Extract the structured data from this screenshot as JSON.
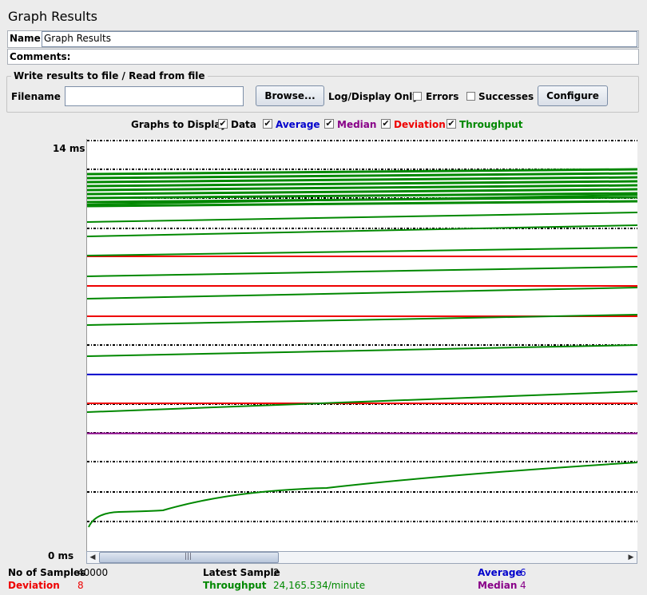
{
  "window": {
    "title": "Graph Results"
  },
  "name_field": {
    "label": "Name:",
    "value": "Graph Results"
  },
  "comments_field": {
    "label": "Comments:",
    "value": ""
  },
  "file_group": {
    "legend": "Write results to file / Read from file",
    "filename_label": "Filename",
    "filename_value": "",
    "browse_label": "Browse...",
    "log_display_label": "Log/Display Only:",
    "errors_label": "Errors",
    "errors_checked": false,
    "successes_label": "Successes",
    "successes_checked": false,
    "configure_label": "Configure"
  },
  "graphs_to_display": {
    "label": "Graphs to Display",
    "options": [
      {
        "label": "Data",
        "checked": true,
        "color": "#000000"
      },
      {
        "label": "Average",
        "checked": true,
        "color": "#0000cc"
      },
      {
        "label": "Median",
        "checked": true,
        "color": "#880088"
      },
      {
        "label": "Deviation",
        "checked": true,
        "color": "#ee0000"
      },
      {
        "label": "Throughput",
        "checked": true,
        "color": "#008800"
      }
    ]
  },
  "chart": {
    "y_max_label": "14 ms",
    "y_min_label": "0 ms",
    "y_range_ms": [
      0,
      14
    ],
    "average_ms": 6,
    "median_ms": 4,
    "check_mark": "✔"
  },
  "stats": {
    "samples_label": "No of Samples",
    "samples_value": "40000",
    "latest_label": "Latest Sample",
    "latest_value": "2",
    "average_label": "Average",
    "average_value": "6",
    "deviation_label": "Deviation",
    "deviation_value": "8",
    "throughput_label": "Throughput",
    "throughput_value": "24,165.534/minute",
    "median_label": "Median",
    "median_value": "4"
  },
  "colors": {
    "data": "#000000",
    "average": "#0000cc",
    "median": "#880088",
    "deviation": "#ee0000",
    "throughput": "#008800"
  },
  "scrollbar": {
    "left_arrow": "◀",
    "right_arrow": "▶",
    "grip": "|||"
  }
}
